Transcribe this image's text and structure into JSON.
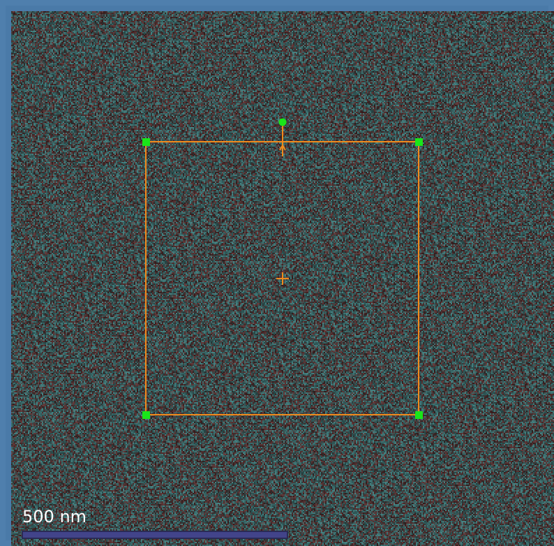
{
  "scale_bar": {
    "label": "500 nm"
  },
  "roi": {
    "shape": "rectangle",
    "handles": [
      "top-left",
      "top-right",
      "bottom-left",
      "bottom-right"
    ],
    "has_rotation_handle": true,
    "has_center_marker": true
  },
  "colors": {
    "roi_outline": "#f08a1c",
    "handle": "#19e619",
    "scale_bar_fill": "#42448a",
    "frame_border": "#4f7fad"
  },
  "icons": [
    "center-crosshair-icon",
    "rotation-handle-icon",
    "direction-arrow-icon"
  ]
}
